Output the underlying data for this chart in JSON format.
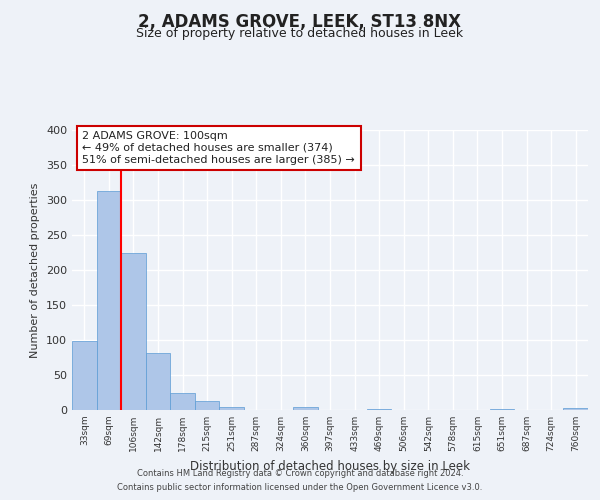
{
  "title": "2, ADAMS GROVE, LEEK, ST13 8NX",
  "subtitle": "Size of property relative to detached houses in Leek",
  "xlabel": "Distribution of detached houses by size in Leek",
  "ylabel": "Number of detached properties",
  "categories": [
    "33sqm",
    "69sqm",
    "106sqm",
    "142sqm",
    "178sqm",
    "215sqm",
    "251sqm",
    "287sqm",
    "324sqm",
    "360sqm",
    "397sqm",
    "433sqm",
    "469sqm",
    "506sqm",
    "542sqm",
    "578sqm",
    "615sqm",
    "651sqm",
    "687sqm",
    "724sqm",
    "760sqm"
  ],
  "bar_values": [
    99,
    313,
    224,
    81,
    25,
    13,
    5,
    0,
    0,
    5,
    0,
    0,
    2,
    0,
    0,
    0,
    0,
    2,
    0,
    0,
    3
  ],
  "bar_color": "#aec6e8",
  "bar_edge_color": "#5b9bd5",
  "ylim": [
    0,
    400
  ],
  "yticks": [
    0,
    50,
    100,
    150,
    200,
    250,
    300,
    350,
    400
  ],
  "red_line_x": 1.5,
  "annotation_line1": "2 ADAMS GROVE: 100sqm",
  "annotation_line2": "← 49% of detached houses are smaller (374)",
  "annotation_line3": "51% of semi-detached houses are larger (385) →",
  "footer_line1": "Contains HM Land Registry data © Crown copyright and database right 2024.",
  "footer_line2": "Contains public sector information licensed under the Open Government Licence v3.0.",
  "background_color": "#eef2f8",
  "plot_background": "#eef2f8",
  "grid_color": "#ffffff",
  "title_fontsize": 12,
  "subtitle_fontsize": 9,
  "annotation_box_color": "#ffffff",
  "annotation_box_edge": "#cc0000"
}
